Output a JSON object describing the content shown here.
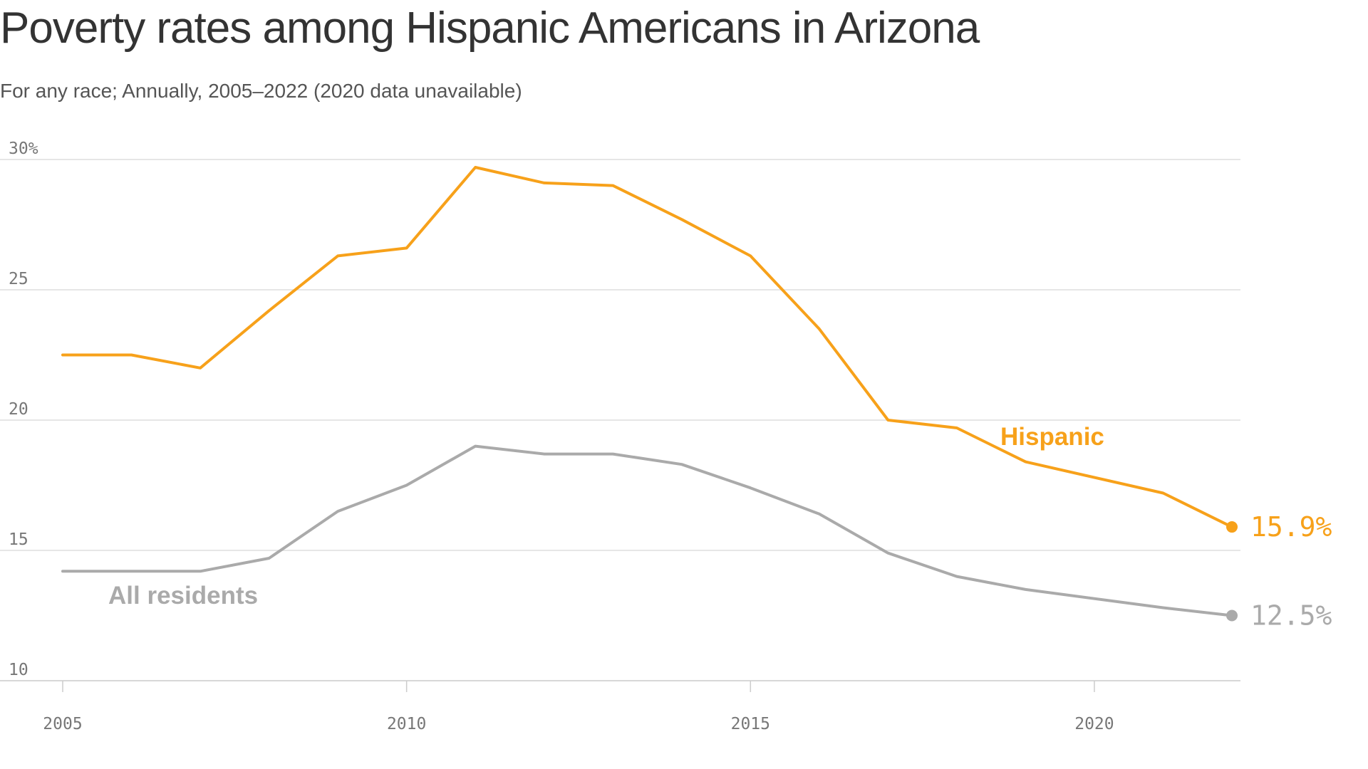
{
  "chart_data": {
    "type": "line",
    "title": "Poverty rates among Hispanic Americans in Arizona",
    "subtitle": "For any race; Annually, 2005–2022 (2020 data unavailable)",
    "xlabel": "",
    "ylabel": "",
    "xlim": [
      2005,
      2022
    ],
    "ylim": [
      10,
      30
    ],
    "x_ticks": [
      2005,
      2010,
      2015,
      2020
    ],
    "x_tick_labels": [
      "2005",
      "2010",
      "2015",
      "2020"
    ],
    "y_ticks": [
      10,
      15,
      20,
      25,
      30
    ],
    "y_tick_labels": [
      "10",
      "15",
      "20",
      "25",
      "30%"
    ],
    "grid": true,
    "series": [
      {
        "name": "Hispanic",
        "color": "#f7a11a",
        "points": [
          {
            "x": 2005,
            "y": 22.5
          },
          {
            "x": 2006,
            "y": 22.5
          },
          {
            "x": 2007,
            "y": 22.0
          },
          {
            "x": 2008,
            "y": 24.2
          },
          {
            "x": 2009,
            "y": 26.3
          },
          {
            "x": 2010,
            "y": 26.6
          },
          {
            "x": 2011,
            "y": 29.7
          },
          {
            "x": 2012,
            "y": 29.1
          },
          {
            "x": 2013,
            "y": 29.0
          },
          {
            "x": 2014,
            "y": 27.7
          },
          {
            "x": 2015,
            "y": 26.3
          },
          {
            "x": 2016,
            "y": 23.5
          },
          {
            "x": 2017,
            "y": 20.0
          },
          {
            "x": 2018,
            "y": 19.7
          },
          {
            "x": 2019,
            "y": 18.4
          },
          {
            "x": 2021,
            "y": 17.2
          },
          {
            "x": 2022,
            "y": 15.9
          }
        ],
        "end_label": "15.9%"
      },
      {
        "name": "All residents",
        "color": "#aaaaaa",
        "points": [
          {
            "x": 2005,
            "y": 14.2
          },
          {
            "x": 2006,
            "y": 14.2
          },
          {
            "x": 2007,
            "y": 14.2
          },
          {
            "x": 2008,
            "y": 14.7
          },
          {
            "x": 2009,
            "y": 16.5
          },
          {
            "x": 2010,
            "y": 17.5
          },
          {
            "x": 2011,
            "y": 19.0
          },
          {
            "x": 2012,
            "y": 18.7
          },
          {
            "x": 2013,
            "y": 18.7
          },
          {
            "x": 2014,
            "y": 18.3
          },
          {
            "x": 2015,
            "y": 17.4
          },
          {
            "x": 2016,
            "y": 16.4
          },
          {
            "x": 2017,
            "y": 14.9
          },
          {
            "x": 2018,
            "y": 14.0
          },
          {
            "x": 2019,
            "y": 13.5
          },
          {
            "x": 2021,
            "y": 12.8
          },
          {
            "x": 2022,
            "y": 12.5
          }
        ],
        "end_label": "12.5%"
      }
    ]
  },
  "colors": {
    "title": "#333333",
    "subtitle": "#555555",
    "grid": "#dddddd",
    "axis": "#cccccc",
    "tick_text": "#777777"
  }
}
